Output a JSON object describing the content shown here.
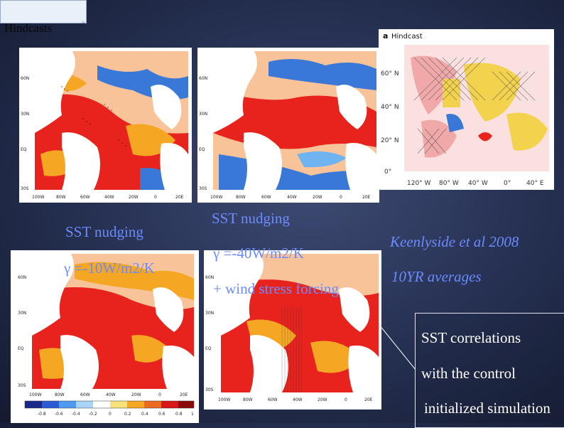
{
  "slide": {
    "title": "Hindcasts",
    "title_mark": "°"
  },
  "panels": {
    "top_left": {
      "axis_lat": [
        "60N",
        "30N",
        "EQ",
        "30S"
      ],
      "axis_lon": [
        "100W",
        "80W",
        "60W",
        "40W",
        "20W",
        "0",
        "20E"
      ]
    },
    "top_right": {
      "axis_lat": [
        "60N",
        "30N",
        "EQ",
        "30S"
      ],
      "axis_lon": [
        "100W",
        "80W",
        "60W",
        "40W",
        "20W",
        "0",
        "20E"
      ]
    },
    "hindcast": {
      "label": "a",
      "title": "Hindcast",
      "axis_lat": [
        "60° N",
        "40° N",
        "20° N",
        "0°"
      ],
      "axis_lon": [
        "120° W",
        "80° W",
        "40° W",
        "0°",
        "40° E"
      ]
    },
    "bottom_left": {
      "axis_lat": [
        "60N",
        "30N",
        "EQ",
        "30S"
      ],
      "axis_lon": [
        "100W",
        "80W",
        "60W",
        "40W",
        "20W",
        "0",
        "20E"
      ]
    },
    "bottom_right": {
      "axis_lat": [
        "60N",
        "30N",
        "EQ",
        "30S"
      ],
      "axis_lon": [
        "100W",
        "80W",
        "60W",
        "40W",
        "20W",
        "0",
        "20E"
      ]
    },
    "colorbar_ticks": [
      "-0.8",
      "-0.6",
      "-0.4",
      "-0.2",
      "0",
      "0.2",
      "0.4",
      "0.6",
      "0.8",
      "1"
    ]
  },
  "captions": {
    "left_line1": "SST nudging",
    "left_line2": "γ =-10W/m2/K",
    "right_line1": "SST nudging",
    "right_line2": "γ =-40W/m2/K",
    "right_line3": "+ wind stress forcing",
    "reference": "Keenlyside et al 2008",
    "averages": "10YR averages"
  },
  "callout": {
    "line1": "SST correlations",
    "line2": "with the control",
    "line3": "initialized simulation"
  },
  "colors": {
    "caption_blue": "#6b8bff",
    "map_red": "#e8231e",
    "map_orange": "#f5a623",
    "map_yellow": "#f4e04d",
    "map_blue": "#3a78d8",
    "land": "#ffffff"
  }
}
